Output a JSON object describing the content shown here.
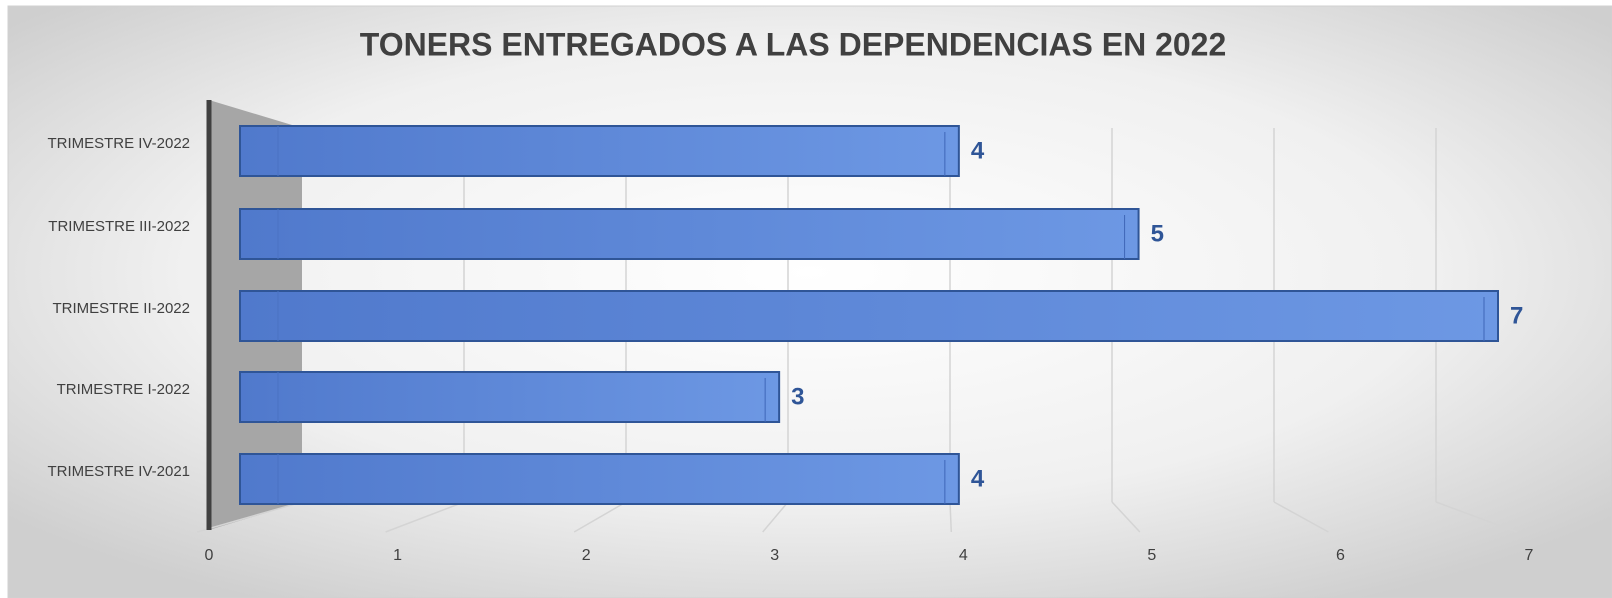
{
  "chart_data": {
    "type": "bar",
    "orientation": "horizontal",
    "title": "TONERS ENTREGADOS A LAS DEPENDENCIAS EN 2022",
    "categories": [
      "TRIMESTRE IV-2022",
      "TRIMESTRE III-2022",
      "TRIMESTRE II-2022",
      "TRIMESTRE I-2022",
      "TRIMESTRE IV-2021"
    ],
    "values": [
      4,
      5,
      7,
      3,
      4
    ],
    "color": "#5b87d6",
    "label_color": "#2f5597",
    "xlim": [
      0,
      7
    ],
    "xticks": [
      0,
      1,
      2,
      3,
      4,
      5,
      6,
      7
    ],
    "grid": true
  }
}
